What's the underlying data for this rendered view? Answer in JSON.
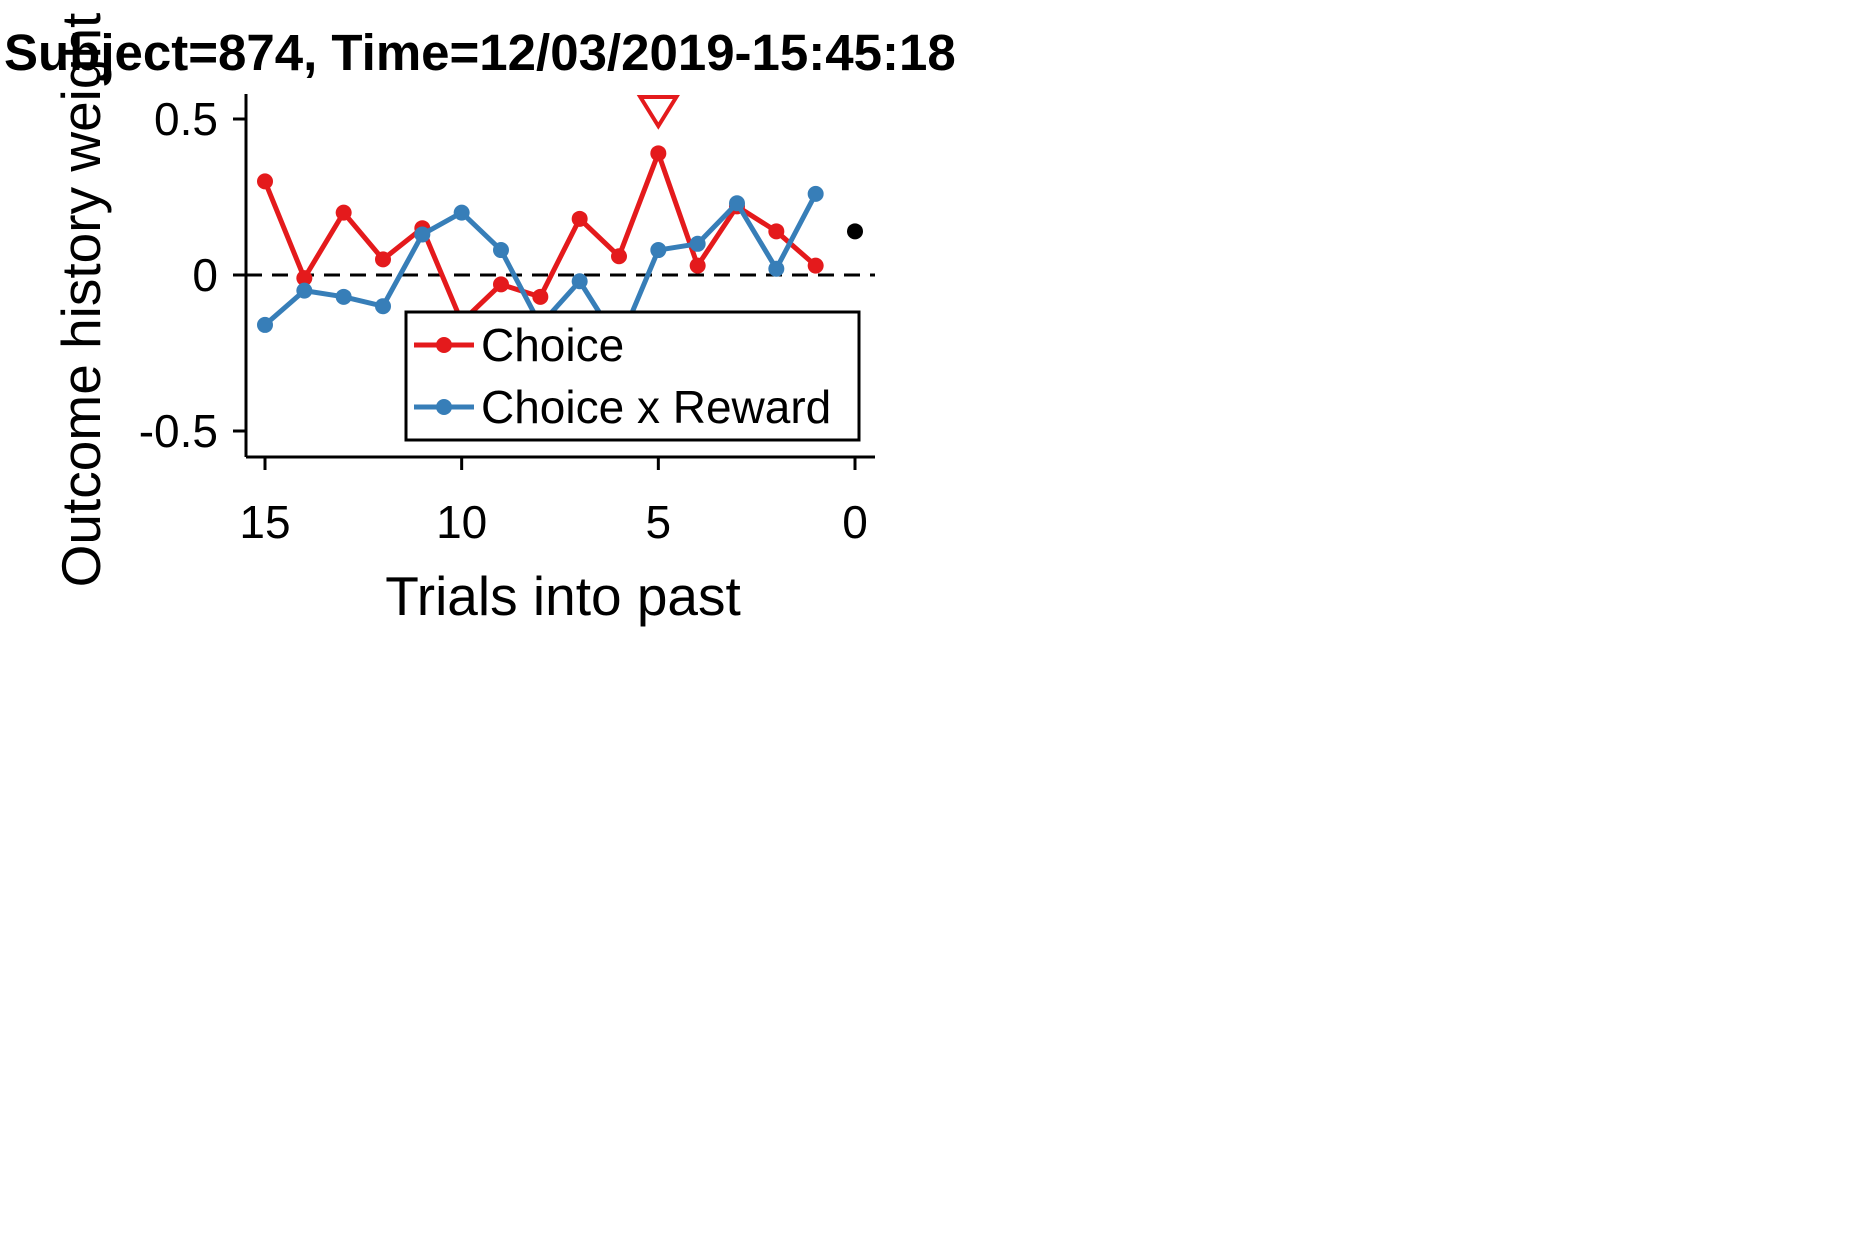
{
  "chart_data": {
    "type": "line",
    "title": "Subject=874, Time=12/03/2019-15:45:18",
    "xlabel": "Trials into past",
    "ylabel": "Outcome history weight",
    "xlim": [
      15.5,
      -0.5
    ],
    "ylim": [
      -0.58,
      0.58
    ],
    "xticks": [
      15,
      10,
      5,
      0
    ],
    "yticks": [
      0.5,
      0,
      -0.5
    ],
    "ytick_labels": [
      "0.5",
      "0",
      "-0.5"
    ],
    "x": [
      15,
      14,
      13,
      12,
      11,
      10,
      9,
      8,
      7,
      6,
      5,
      4,
      3,
      2,
      1
    ],
    "series": [
      {
        "name": "Choice",
        "color": "#e41a1c",
        "values": [
          0.3,
          -0.01,
          0.2,
          0.05,
          0.15,
          -0.15,
          -0.03,
          -0.07,
          0.18,
          0.06,
          0.39,
          0.03,
          0.22,
          0.14,
          0.03
        ]
      },
      {
        "name": "Choice x Reward",
        "color": "#377eb8",
        "values": [
          -0.16,
          -0.05,
          -0.07,
          -0.1,
          0.13,
          0.2,
          0.08,
          -0.16,
          -0.02,
          -0.22,
          0.08,
          0.1,
          0.23,
          0.02,
          0.26
        ]
      }
    ],
    "intercept": {
      "x": 0,
      "value": 0.14,
      "color": "#000000"
    },
    "marker": {
      "shape": "down-triangle",
      "x": 5,
      "color": "#e41a1c"
    },
    "zero_line": {
      "style": "dashed",
      "value": 0
    },
    "legend_position": "lower-right",
    "grid": false
  }
}
